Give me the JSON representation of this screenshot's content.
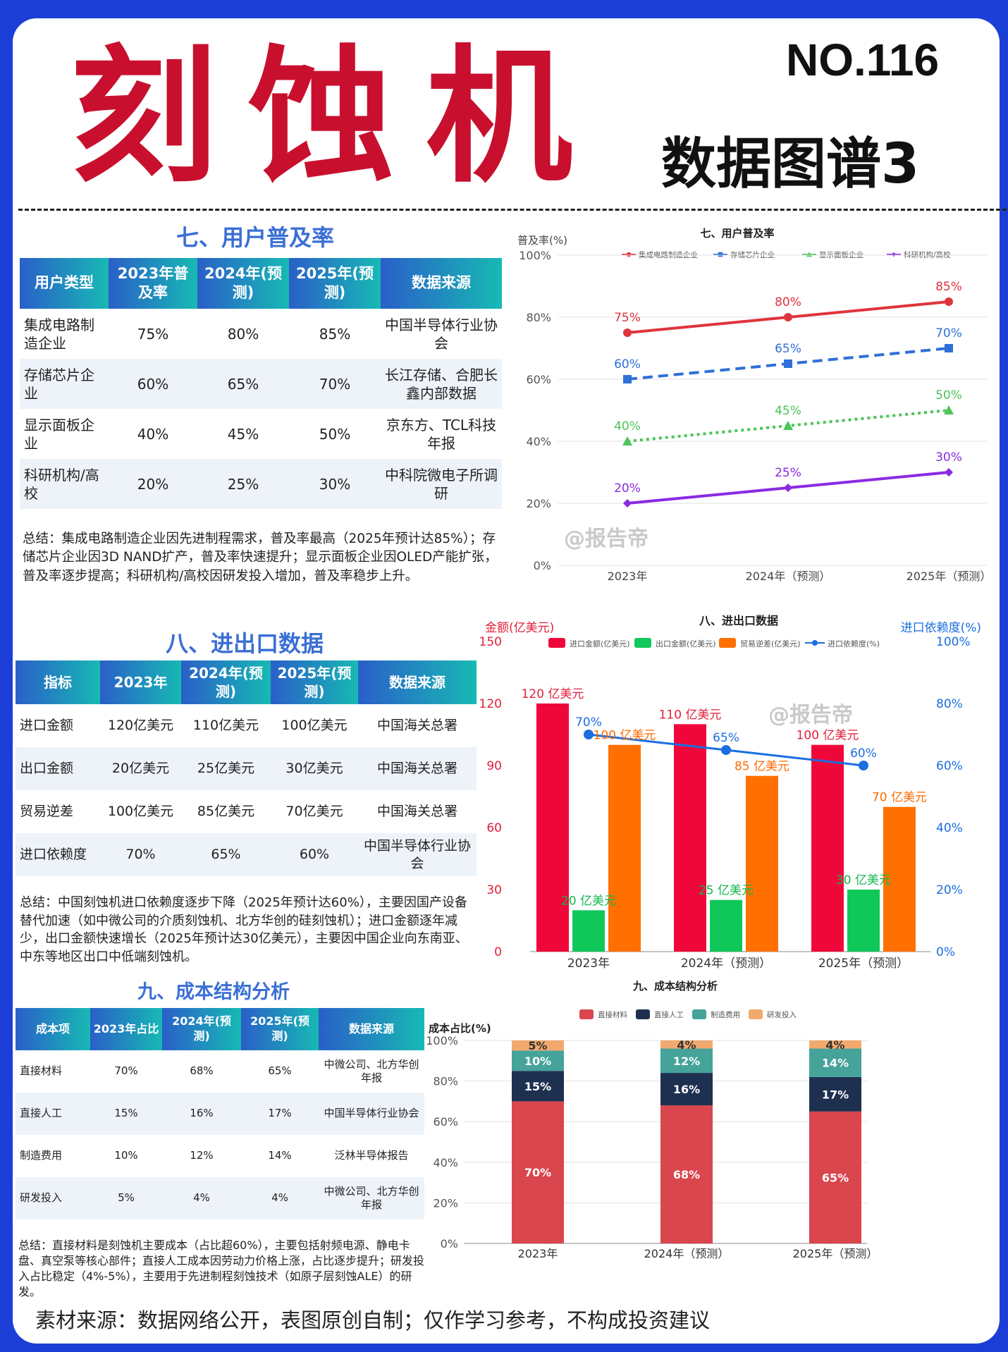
{
  "header": {
    "main_title": "刻蚀机",
    "issue_no": "NO.116",
    "subtitle": "数据图谱3"
  },
  "sec7": {
    "title": "七、用户普及率",
    "table": {
      "headers": [
        "用户类型",
        "2023年普及率",
        "2024年(预测)",
        "2025年(预测)",
        "数据来源"
      ],
      "rows": [
        [
          "集成电路制造企业",
          "75%",
          "80%",
          "85%",
          "中国半导体行业协会"
        ],
        [
          "存储芯片企业",
          "60%",
          "65%",
          "70%",
          "长江存储、合肥长鑫内部数据"
        ],
        [
          "显示面板企业",
          "40%",
          "45%",
          "50%",
          "京东方、TCL科技年报"
        ],
        [
          "科研机构/高校",
          "20%",
          "25%",
          "30%",
          "中科院微电子所调研"
        ]
      ]
    },
    "summary": "总结：集成电路制造企业因先进制程需求，普及率最高（2025年预计达85%）；存储芯片企业因3D NAND扩产，普及率快速提升；显示面板企业因OLED产能扩张，普及率逐步提高；科研机构/高校因研发投入增加，普及率稳步上升。"
  },
  "sec8": {
    "title": "八、进出口数据",
    "table": {
      "headers": [
        "指标",
        "2023年",
        "2024年(预测)",
        "2025年(预测)",
        "数据来源"
      ],
      "rows": [
        [
          "进口金额",
          "120亿美元",
          "110亿美元",
          "100亿美元",
          "中国海关总署"
        ],
        [
          "出口金额",
          "20亿美元",
          "25亿美元",
          "30亿美元",
          "中国海关总署"
        ],
        [
          "贸易逆差",
          "100亿美元",
          "85亿美元",
          "70亿美元",
          "中国海关总署"
        ],
        [
          "进口依赖度",
          "70%",
          "65%",
          "60%",
          "中国半导体行业协会"
        ]
      ]
    },
    "summary": "总结：中国刻蚀机进口依赖度逐步下降（2025年预计达60%），主要因国产设备替代加速（如中微公司的介质刻蚀机、北方华创的硅刻蚀机）；进口金额逐年减少，出口金额快速增长（2025年预计达30亿美元），主要因中国企业向东南亚、中东等地区出口中低端刻蚀机。"
  },
  "sec9": {
    "title": "九、成本结构分析",
    "table": {
      "headers": [
        "成本项",
        "2023年占比",
        "2024年(预测)",
        "2025年(预测)",
        "数据来源"
      ],
      "rows": [
        [
          "直接材料",
          "70%",
          "68%",
          "65%",
          "中微公司、北方华创年报"
        ],
        [
          "直接人工",
          "15%",
          "16%",
          "17%",
          "中国半导体行业协会"
        ],
        [
          "制造费用",
          "10%",
          "12%",
          "14%",
          "泛林半导体报告"
        ],
        [
          "研发投入",
          "5%",
          "4%",
          "4%",
          "中微公司、北方华创年报"
        ]
      ]
    },
    "summary": "总结：直接材料是刻蚀机主要成本（占比超60%），主要包括射频电源、静电卡盘、真空泵等核心部件；直接人工成本因劳动力价格上涨，占比逐步提升；研发投入占比稳定（4%-5%），主要用于先进制程刻蚀技术（如原子层刻蚀ALE）的研发。"
  },
  "watermark": "@报告帝",
  "footer": "素材来源：数据网络公开，表图原创自制；仅作学习参考，不构成投资建议",
  "chart_data": [
    {
      "type": "line",
      "title": "七、用户普及率",
      "ylabel": "普及率(%)",
      "x": [
        "2023年",
        "2024年（预测）",
        "2025年（预测）"
      ],
      "ylim": [
        0,
        100
      ],
      "yticks": [
        "0%",
        "20%",
        "40%",
        "60%",
        "80%",
        "100%"
      ],
      "legend_position": "top",
      "series": [
        {
          "name": "集成电路制造企业",
          "values": [
            75,
            80,
            85
          ],
          "labels": [
            "75%",
            "80%",
            "85%"
          ],
          "color": "#e0343c",
          "style": "solid",
          "marker": "circle"
        },
        {
          "name": "存储芯片企业",
          "values": [
            60,
            65,
            70
          ],
          "labels": [
            "60%",
            "65%",
            "70%"
          ],
          "color": "#2f6fd8",
          "style": "dashed",
          "marker": "square"
        },
        {
          "name": "显示面板企业",
          "values": [
            40,
            45,
            50
          ],
          "labels": [
            "40%",
            "45%",
            "50%"
          ],
          "color": "#4cc45a",
          "style": "dotted",
          "marker": "triangle"
        },
        {
          "name": "科研机构/高校",
          "values": [
            20,
            25,
            30
          ],
          "labels": [
            "20%",
            "25%",
            "30%"
          ],
          "color": "#8a2be2",
          "style": "solid",
          "marker": "diamond"
        }
      ]
    },
    {
      "type": "bar",
      "title": "八、进出口数据",
      "ylabel": "金额(亿美元)",
      "y2label": "进口依赖度(%)",
      "categories": [
        "2023年",
        "2024年（预测）",
        "2025年（预测）"
      ],
      "ylim": [
        0,
        150
      ],
      "yticks": [
        "0",
        "30",
        "60",
        "90",
        "120",
        "150"
      ],
      "y2lim": [
        0,
        100
      ],
      "y2ticks": [
        "0%",
        "20%",
        "40%",
        "60%",
        "80%",
        "100%"
      ],
      "legend_position": "top",
      "series": [
        {
          "name": "进口金额(亿美元)",
          "values": [
            120,
            110,
            100
          ],
          "labels": [
            "120 亿美元",
            "110 亿美元",
            "100 亿美元"
          ],
          "color": "#f0073a"
        },
        {
          "name": "出口金额(亿美元)",
          "values": [
            20,
            25,
            30
          ],
          "labels": [
            "20 亿美元",
            "25 亿美元",
            "30 亿美元"
          ],
          "color": "#10c85a"
        },
        {
          "name": "贸易逆差(亿美元)",
          "values": [
            100,
            85,
            70
          ],
          "labels": [
            "100 亿美元",
            "85 亿美元",
            "70 亿美元"
          ],
          "color": "#ff7000"
        }
      ],
      "line_series": {
        "name": "进口依赖度(%)",
        "values": [
          70,
          65,
          60
        ],
        "labels": [
          "70%",
          "65%",
          "60%"
        ],
        "color": "#1a6ee0",
        "axis": "right"
      }
    },
    {
      "type": "bar",
      "stacked": true,
      "title": "九、成本结构分析",
      "ylabel": "成本占比(%)",
      "categories": [
        "2023年",
        "2024年（预测）",
        "2025年（预测）"
      ],
      "ylim": [
        0,
        100
      ],
      "yticks": [
        "0%",
        "20%",
        "40%",
        "60%",
        "80%",
        "100%"
      ],
      "legend_position": "top",
      "series": [
        {
          "name": "直接材料",
          "values": [
            70,
            68,
            65
          ],
          "labels": [
            "70%",
            "68%",
            "65%"
          ],
          "color": "#d9464e"
        },
        {
          "name": "直接人工",
          "values": [
            15,
            16,
            17
          ],
          "labels": [
            "15%",
            "16%",
            "17%"
          ],
          "color": "#1e3050"
        },
        {
          "name": "制造费用",
          "values": [
            10,
            12,
            14
          ],
          "labels": [
            "10%",
            "12%",
            "14%"
          ],
          "color": "#45a39a"
        },
        {
          "name": "研发投入",
          "values": [
            5,
            4,
            4
          ],
          "labels": [
            "5%",
            "4%",
            "4%"
          ],
          "color": "#f2a96e"
        }
      ]
    }
  ]
}
